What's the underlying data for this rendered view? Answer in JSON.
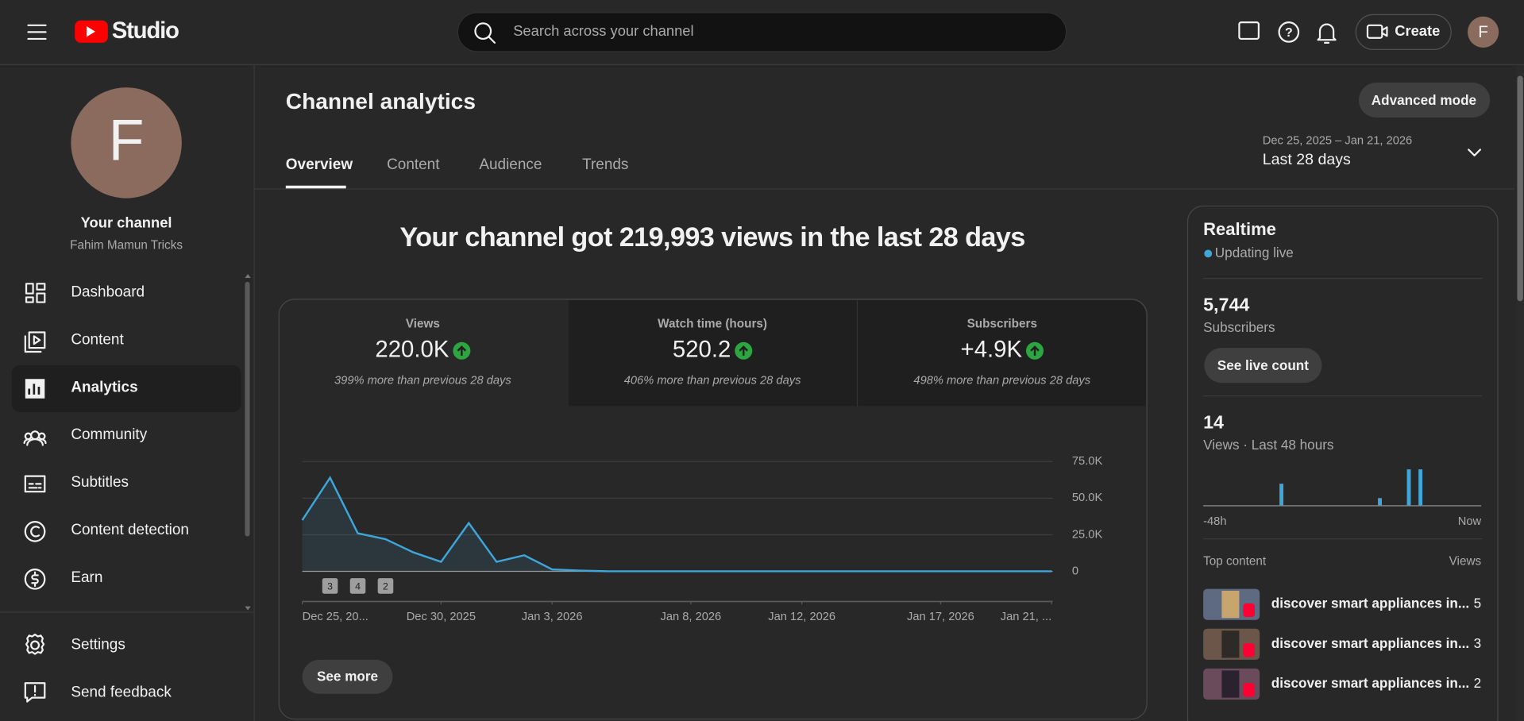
{
  "header": {
    "logo_text": "Studio",
    "search_placeholder": "Search across your channel",
    "create": "Create",
    "avatar": "F"
  },
  "sidebar": {
    "avatar": "F",
    "title": "Your channel",
    "channel_name": "Fahim Mamun Tricks",
    "nav": [
      "Dashboard",
      "Content",
      "Analytics",
      "Community",
      "Subtitles",
      "Content detection",
      "Earn"
    ],
    "footer": [
      "Settings",
      "Send feedback"
    ]
  },
  "page": {
    "title": "Channel analytics",
    "advanced_mode": "Advanced mode",
    "tabs": [
      "Overview",
      "Content",
      "Audience",
      "Trends"
    ],
    "date_range": "Dec 25, 2025 – Jan 21, 2026",
    "date_label": "Last 28 days",
    "headline": "Your channel got 219,993 views in the last 28 days",
    "metrics": [
      {
        "label": "Views",
        "value": "220.0K",
        "note": "399% more than previous 28 days"
      },
      {
        "label": "Watch time (hours)",
        "value": "520.2",
        "note": "406% more than previous 28 days"
      },
      {
        "label": "Subscribers",
        "value": "+4.9K",
        "note": "498% more than previous 28 days"
      }
    ],
    "see_more": "See more"
  },
  "realtime": {
    "title": "Realtime",
    "status": "Updating live",
    "subscribers": "5,744",
    "subscribers_label": "Subscribers",
    "see_live_count": "See live count",
    "views": 14,
    "views_label": "Views · Last 48 hours",
    "top_content": "Top content",
    "views_header": "Views",
    "items": [
      {
        "title": "discover smart appliances in...",
        "views": 5
      },
      {
        "title": "discover smart appliances in...",
        "views": 3
      },
      {
        "title": "discover smart appliances in...",
        "views": 2
      }
    ]
  },
  "chart_data": [
    {
      "type": "line",
      "color": "#3ea6d8",
      "x": [
        "2025-12-25",
        "2025-12-26",
        "2025-12-27",
        "2025-12-28",
        "2025-12-29",
        "2025-12-30",
        "2025-12-31",
        "2026-01-01",
        "2026-01-02",
        "2026-01-03",
        "2026-01-04",
        "2026-01-05",
        "2026-01-06",
        "2026-01-07",
        "2026-01-08",
        "2026-01-09",
        "2026-01-10",
        "2026-01-11",
        "2026-01-12",
        "2026-01-13",
        "2026-01-14",
        "2026-01-15",
        "2026-01-16",
        "2026-01-17",
        "2026-01-18",
        "2026-01-19",
        "2026-01-20",
        "2026-01-21"
      ],
      "values": [
        35000,
        64000,
        26000,
        22000,
        13000,
        6500,
        33000,
        6500,
        11000,
        1300,
        500,
        70,
        70,
        70,
        70,
        70,
        70,
        70,
        70,
        70,
        70,
        70,
        70,
        70,
        70,
        70,
        70,
        70
      ],
      "xlim": [
        "2025-12-25",
        "2026-01-21"
      ],
      "xticks": [
        {
          "value": "2025-12-25",
          "label": "Dec 25, 20..."
        },
        {
          "value": "2025-12-30",
          "label": "Dec 30, 2025"
        },
        {
          "value": "2026-01-03",
          "label": "Jan 3, 2026"
        },
        {
          "value": "2026-01-08",
          "label": "Jan 8, 2026"
        },
        {
          "value": "2026-01-12",
          "label": "Jan 12, 2026"
        },
        {
          "value": "2026-01-17",
          "label": "Jan 17, 2026"
        },
        {
          "value": "2026-01-21",
          "label": "Jan 21, ..."
        }
      ],
      "ylim": [
        0,
        75000
      ],
      "yticks": [
        0,
        {
          "value": 25000,
          "label": "25.0K"
        },
        {
          "value": 50000,
          "label": "50.0K"
        },
        {
          "value": 75000,
          "label": "75.0K"
        }
      ],
      "grid": true,
      "annotations": [
        {
          "x": "2025-12-26",
          "label": "3"
        },
        {
          "x": "2025-12-27",
          "label": "4"
        },
        {
          "x": "2025-12-28",
          "label": "2"
        }
      ]
    },
    {
      "type": "bar",
      "color": "#3ea6d8",
      "categories": [
        "-48h",
        null,
        null,
        null,
        null,
        null,
        null,
        null,
        null,
        null,
        null,
        null,
        null,
        null,
        null,
        null,
        null,
        null,
        null,
        null,
        null,
        null,
        null,
        null,
        null,
        null,
        null,
        null,
        null,
        null,
        null,
        null,
        null,
        null,
        null,
        null,
        null,
        null,
        null,
        null,
        null,
        null,
        null,
        null,
        null,
        null,
        null,
        "Now"
      ],
      "values": [
        0,
        0,
        0,
        0,
        0,
        0,
        0,
        0,
        0,
        0,
        0,
        0,
        0,
        3,
        0,
        0,
        0,
        0,
        0,
        0,
        0,
        0,
        0,
        0,
        0,
        0,
        0,
        0,
        0,
        0,
        1,
        0,
        0,
        0,
        0,
        5,
        0,
        5,
        0,
        0,
        0,
        0,
        0,
        0,
        0,
        0,
        0,
        0
      ]
    }
  ]
}
